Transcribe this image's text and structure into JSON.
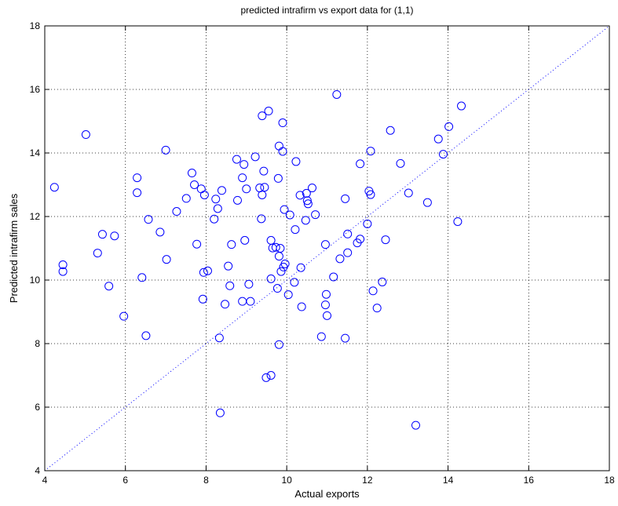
{
  "chart_data": {
    "type": "scatter",
    "title": "predicted intrafirm vs export data for (1,1)",
    "xlabel": "Actual exports",
    "ylabel": "Predicted intrafirm sales",
    "xlim": [
      4,
      18
    ],
    "ylim": [
      4,
      18
    ],
    "x_ticks": [
      4,
      6,
      8,
      10,
      12,
      14,
      16,
      18
    ],
    "y_ticks": [
      4,
      6,
      8,
      10,
      12,
      14,
      16,
      18
    ],
    "x_tick_labels": [
      "4",
      "6",
      "8",
      "10",
      "12",
      "14",
      "16",
      "18"
    ],
    "y_tick_labels": [
      "4",
      "6",
      "8",
      "10",
      "12",
      "14",
      "16",
      "18"
    ],
    "grid": true,
    "reference_line": {
      "style": "dotted",
      "from": [
        4,
        4
      ],
      "to": [
        18,
        18
      ]
    },
    "marker": "circle-open",
    "series_color": "#0000ff",
    "points": [
      [
        4.24,
        12.92
      ],
      [
        4.45,
        10.48
      ],
      [
        4.45,
        10.27
      ],
      [
        5.02,
        14.58
      ],
      [
        5.31,
        10.85
      ],
      [
        5.43,
        11.44
      ],
      [
        5.59,
        9.81
      ],
      [
        5.73,
        11.39
      ],
      [
        5.96,
        8.86
      ],
      [
        6.29,
        13.22
      ],
      [
        6.29,
        12.75
      ],
      [
        6.41,
        10.08
      ],
      [
        6.51,
        8.25
      ],
      [
        6.57,
        11.91
      ],
      [
        6.86,
        11.51
      ],
      [
        7.0,
        14.09
      ],
      [
        7.02,
        10.65
      ],
      [
        7.27,
        12.16
      ],
      [
        7.51,
        12.57
      ],
      [
        7.65,
        13.37
      ],
      [
        7.71,
        13.0
      ],
      [
        7.77,
        11.13
      ],
      [
        7.88,
        12.87
      ],
      [
        7.92,
        9.4
      ],
      [
        7.94,
        10.24
      ],
      [
        7.96,
        12.68
      ],
      [
        8.04,
        10.29
      ],
      [
        8.2,
        11.92
      ],
      [
        8.24,
        12.55
      ],
      [
        8.29,
        12.25
      ],
      [
        8.33,
        8.18
      ],
      [
        8.35,
        5.82
      ],
      [
        8.39,
        12.82
      ],
      [
        8.47,
        9.24
      ],
      [
        8.55,
        10.44
      ],
      [
        8.59,
        9.82
      ],
      [
        8.63,
        11.12
      ],
      [
        8.76,
        13.8
      ],
      [
        8.78,
        12.51
      ],
      [
        8.9,
        9.33
      ],
      [
        8.9,
        13.22
      ],
      [
        8.94,
        13.64
      ],
      [
        8.96,
        11.25
      ],
      [
        9.0,
        12.87
      ],
      [
        9.06,
        9.87
      ],
      [
        9.1,
        9.33
      ],
      [
        9.22,
        13.88
      ],
      [
        9.33,
        12.9
      ],
      [
        9.37,
        11.93
      ],
      [
        9.39,
        15.17
      ],
      [
        9.39,
        12.68
      ],
      [
        9.43,
        13.43
      ],
      [
        9.45,
        12.92
      ],
      [
        9.49,
        6.93
      ],
      [
        9.55,
        15.32
      ],
      [
        9.61,
        7.0
      ],
      [
        9.61,
        10.04
      ],
      [
        9.61,
        11.25
      ],
      [
        9.65,
        11.01
      ],
      [
        9.73,
        11.03
      ],
      [
        9.77,
        9.74
      ],
      [
        9.79,
        13.2
      ],
      [
        9.81,
        7.97
      ],
      [
        9.81,
        10.75
      ],
      [
        9.81,
        14.22
      ],
      [
        9.84,
        11.0
      ],
      [
        9.86,
        10.27
      ],
      [
        9.9,
        14.95
      ],
      [
        9.9,
        14.05
      ],
      [
        9.92,
        10.41
      ],
      [
        9.94,
        12.22
      ],
      [
        9.96,
        10.51
      ],
      [
        10.04,
        9.54
      ],
      [
        10.08,
        12.05
      ],
      [
        10.19,
        9.93
      ],
      [
        10.21,
        11.59
      ],
      [
        10.23,
        13.73
      ],
      [
        10.33,
        12.67
      ],
      [
        10.35,
        10.39
      ],
      [
        10.37,
        9.16
      ],
      [
        10.47,
        11.88
      ],
      [
        10.49,
        12.73
      ],
      [
        10.51,
        12.5
      ],
      [
        10.53,
        12.4
      ],
      [
        10.63,
        12.9
      ],
      [
        10.71,
        12.06
      ],
      [
        10.86,
        8.22
      ],
      [
        10.96,
        9.22
      ],
      [
        10.96,
        11.12
      ],
      [
        10.98,
        9.55
      ],
      [
        11.0,
        8.88
      ],
      [
        11.16,
        10.1
      ],
      [
        11.24,
        15.84
      ],
      [
        11.32,
        10.67
      ],
      [
        11.45,
        12.56
      ],
      [
        11.45,
        8.17
      ],
      [
        11.51,
        11.45
      ],
      [
        11.51,
        10.86
      ],
      [
        11.75,
        11.17
      ],
      [
        11.82,
        13.66
      ],
      [
        11.82,
        11.29
      ],
      [
        12.0,
        11.77
      ],
      [
        12.04,
        12.8
      ],
      [
        12.08,
        12.69
      ],
      [
        12.08,
        14.06
      ],
      [
        12.14,
        9.66
      ],
      [
        12.24,
        9.12
      ],
      [
        12.37,
        9.94
      ],
      [
        12.45,
        11.27
      ],
      [
        12.57,
        14.71
      ],
      [
        12.82,
        13.67
      ],
      [
        13.02,
        12.74
      ],
      [
        13.2,
        5.43
      ],
      [
        13.49,
        12.44
      ],
      [
        13.76,
        14.44
      ],
      [
        13.88,
        13.96
      ],
      [
        14.02,
        14.83
      ],
      [
        14.24,
        11.84
      ],
      [
        14.33,
        15.48
      ]
    ]
  }
}
